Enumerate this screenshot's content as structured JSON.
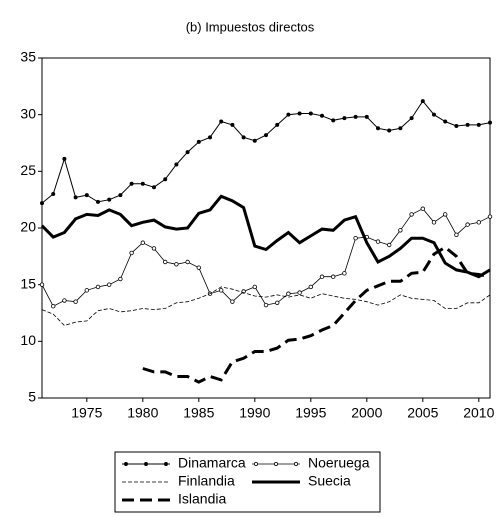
{
  "chart_data": {
    "type": "line",
    "title": "(b) Impuestos directos",
    "x": [
      1971,
      1972,
      1973,
      1974,
      1975,
      1976,
      1977,
      1978,
      1979,
      1980,
      1981,
      1982,
      1983,
      1984,
      1985,
      1986,
      1987,
      1988,
      1989,
      1990,
      1991,
      1992,
      1993,
      1994,
      1995,
      1996,
      1997,
      1998,
      1999,
      2000,
      2001,
      2002,
      2003,
      2004,
      2005,
      2006,
      2007,
      2008,
      2009,
      2010,
      2011
    ],
    "xlim": [
      1971,
      2011
    ],
    "xticks": [
      1975,
      1980,
      1985,
      1990,
      1995,
      2000,
      2005,
      2010
    ],
    "ylim": [
      5,
      35
    ],
    "yticks": [
      5,
      10,
      15,
      20,
      25,
      30,
      35
    ],
    "grid": false,
    "legend": "bottom",
    "series": [
      {
        "name": "Dinamarca",
        "color": "#000000",
        "dash": "solid",
        "width": 1,
        "marker": "dot",
        "values": [
          22.2,
          23.0,
          26.1,
          22.7,
          22.9,
          22.3,
          22.5,
          22.9,
          23.9,
          23.9,
          23.6,
          24.3,
          25.6,
          26.7,
          27.6,
          28.0,
          29.4,
          29.1,
          28.0,
          27.7,
          28.2,
          29.1,
          30.0,
          30.1,
          30.1,
          29.9,
          29.5,
          29.7,
          29.8,
          29.8,
          28.8,
          28.6,
          28.8,
          29.7,
          31.2,
          30.0,
          29.4,
          29.0,
          29.1,
          29.1,
          29.3
        ]
      },
      {
        "name": "Noeruega",
        "color": "#000000",
        "dash": "solid",
        "width": 0.8,
        "marker": "circle",
        "values": [
          15.0,
          13.1,
          13.6,
          13.5,
          14.5,
          14.8,
          15.0,
          15.5,
          17.8,
          18.7,
          18.2,
          17.0,
          16.8,
          17.0,
          16.5,
          14.2,
          14.5,
          13.5,
          14.4,
          14.8,
          13.2,
          13.4,
          14.2,
          14.3,
          14.8,
          15.7,
          15.7,
          16.0,
          19.1,
          19.2,
          18.8,
          18.5,
          19.8,
          21.2,
          21.7,
          20.5,
          21.2,
          19.4,
          20.3,
          20.5,
          21.0
        ]
      },
      {
        "name": "Finlandia",
        "color": "#000000",
        "dash": "dashed",
        "width": 0.8,
        "marker": "none",
        "values": [
          12.8,
          12.4,
          11.4,
          11.7,
          11.8,
          12.7,
          12.9,
          12.6,
          12.7,
          12.9,
          12.8,
          12.9,
          13.4,
          13.5,
          13.8,
          14.2,
          14.8,
          14.6,
          14.3,
          14.0,
          13.9,
          14.1,
          13.9,
          14.1,
          13.8,
          14.2,
          14.0,
          13.8,
          13.7,
          13.5,
          13.2,
          13.5,
          14.1,
          13.8,
          13.7,
          13.6,
          12.9,
          12.9,
          13.4,
          13.4,
          14.1
        ]
      },
      {
        "name": "Suecia",
        "color": "#000000",
        "dash": "solid",
        "width": 3,
        "marker": "none",
        "values": [
          20.2,
          19.2,
          19.6,
          20.8,
          21.2,
          21.1,
          21.6,
          21.2,
          20.2,
          20.5,
          20.7,
          20.1,
          19.9,
          20.0,
          21.3,
          21.6,
          22.8,
          22.4,
          21.8,
          18.4,
          18.1,
          18.9,
          19.6,
          18.7,
          19.3,
          19.9,
          19.8,
          20.7,
          21.0,
          18.7,
          17.0,
          17.5,
          18.2,
          19.1,
          19.1,
          18.7,
          16.9,
          16.3,
          16.1,
          15.7,
          16.3
        ]
      },
      {
        "name": "Islandia",
        "color": "#000000",
        "dash": "longdash",
        "width": 3,
        "marker": "none",
        "values": [
          null,
          null,
          null,
          null,
          null,
          null,
          null,
          null,
          null,
          7.6,
          7.3,
          7.3,
          6.9,
          6.9,
          6.4,
          6.9,
          6.6,
          8.2,
          8.5,
          9.1,
          9.1,
          9.4,
          10.1,
          10.2,
          10.5,
          11.0,
          11.4,
          12.5,
          13.6,
          14.5,
          14.9,
          15.3,
          15.3,
          16.0,
          16.1,
          17.7,
          18.3,
          17.5,
          16.0,
          15.9,
          15.7
        ]
      }
    ]
  }
}
